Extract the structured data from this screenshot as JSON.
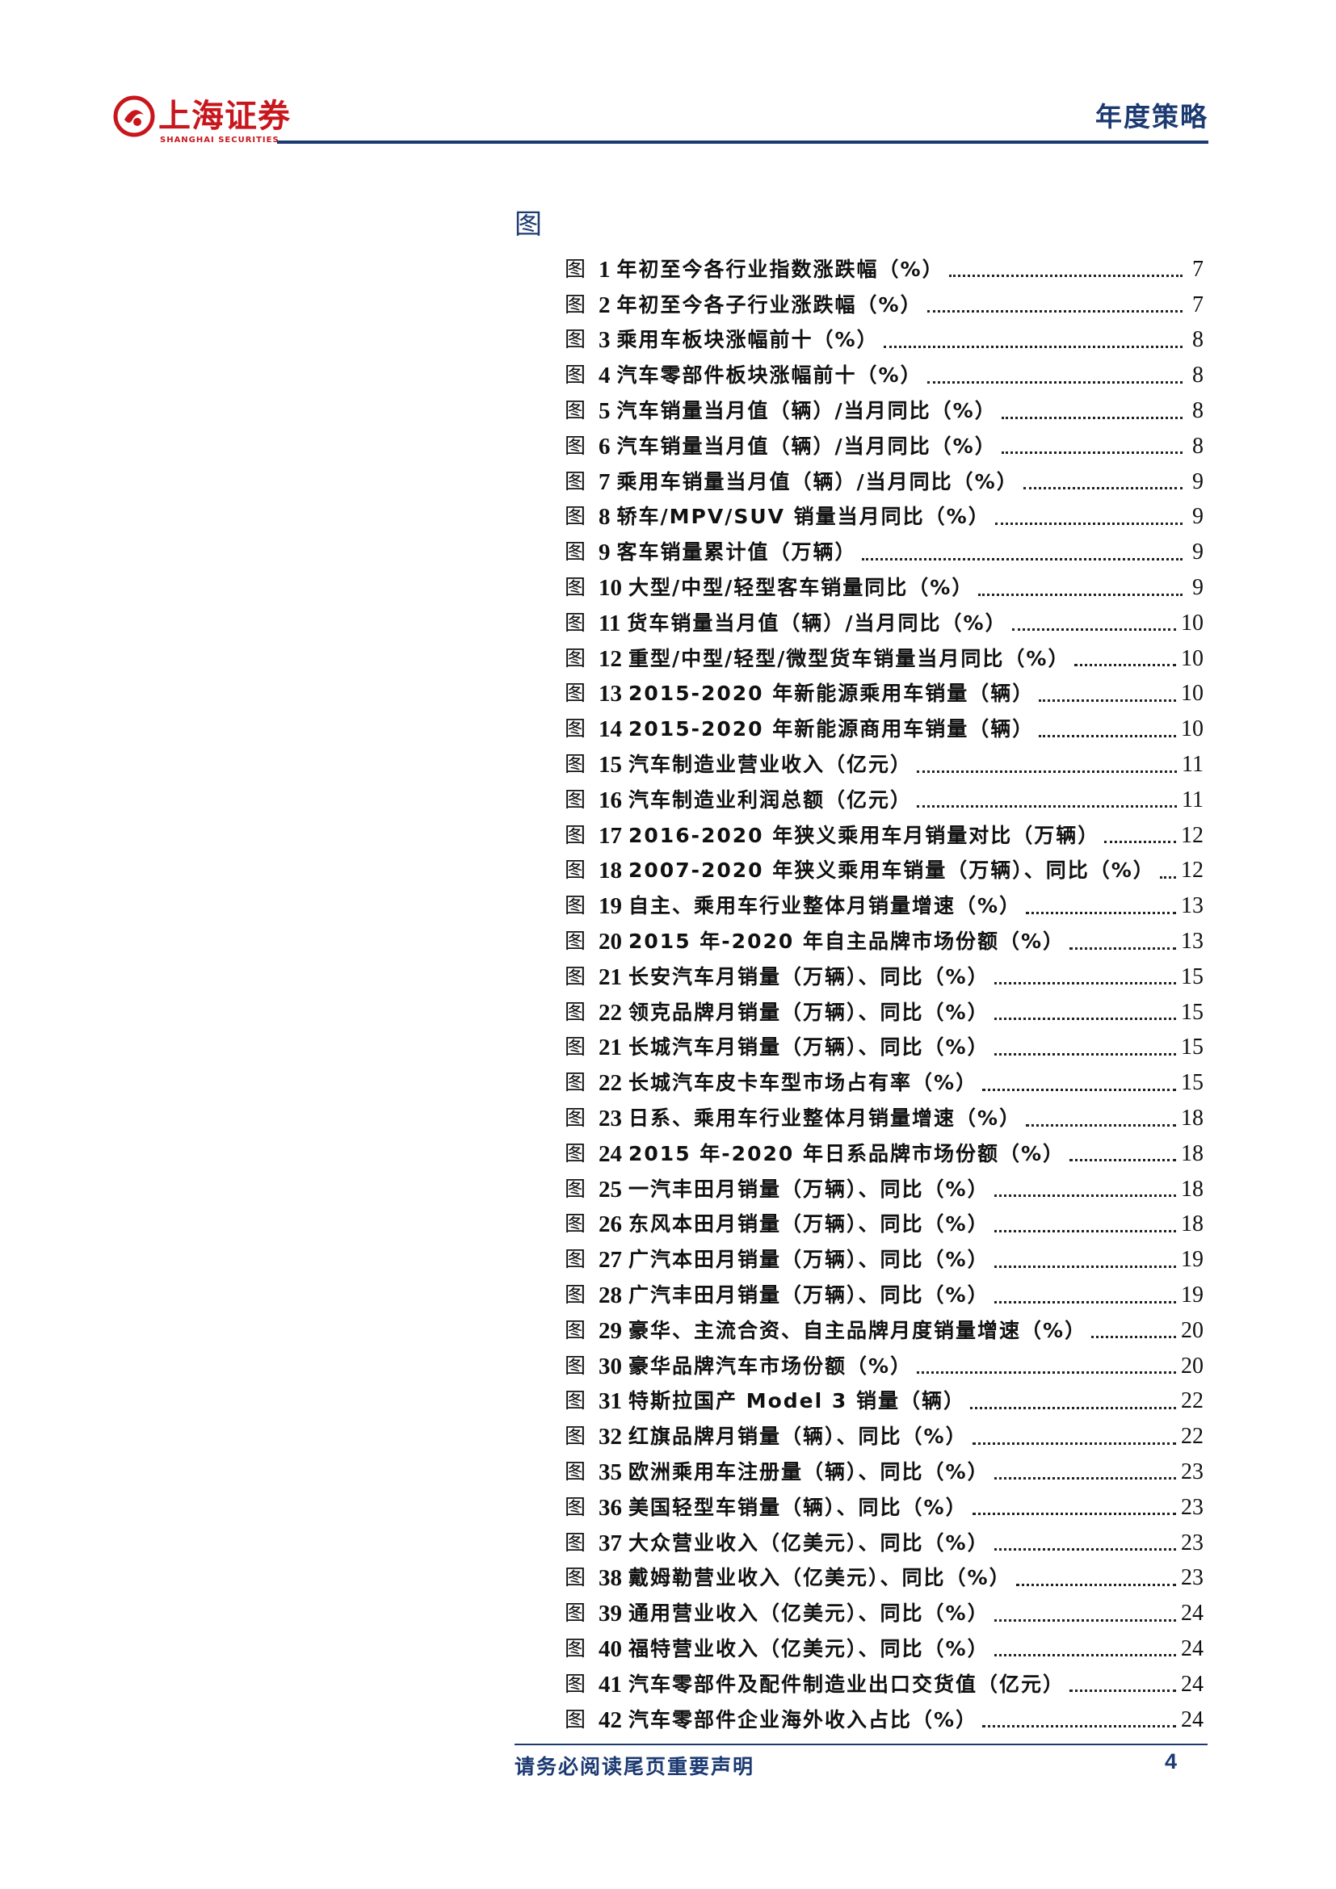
{
  "header": {
    "logo_cn": "上海证券",
    "logo_en": "SHANGHAI SECURITIES",
    "title": "年度策略"
  },
  "section_heading": "图",
  "toc_label": "图",
  "toc": [
    {
      "num": "1",
      "title": "年初至今各行业指数涨跌幅（%）",
      "page": "7"
    },
    {
      "num": "2",
      "title": "年初至今各子行业涨跌幅（%）",
      "page": "7"
    },
    {
      "num": "3",
      "title": "乘用车板块涨幅前十（%）",
      "page": "8"
    },
    {
      "num": "4",
      "title": "汽车零部件板块涨幅前十（%）",
      "page": "8"
    },
    {
      "num": "5",
      "title": " 汽车销量当月值（辆）/当月同比（%）",
      "page": "8"
    },
    {
      "num": "6",
      "title": "汽车销量当月值（辆）/当月同比（%）",
      "page": "8"
    },
    {
      "num": "7",
      "title": "乘用车销量当月值（辆）/当月同比（%）",
      "page": "9"
    },
    {
      "num": "8",
      "title": "轿车/MPV/SUV 销量当月同比（%）",
      "page": "9"
    },
    {
      "num": "9",
      "title": " 客车销量累计值（万辆）",
      "page": "9"
    },
    {
      "num": "10",
      "title": "大型/中型/轻型客车销量同比（%）",
      "page": "9"
    },
    {
      "num": "11",
      "title": " 货车销量当月值（辆）/当月同比（%）",
      "page": "10"
    },
    {
      "num": "12",
      "title": "重型/中型/轻型/微型货车销量当月同比（%）",
      "page": "10"
    },
    {
      "num": "13",
      "title": "2015-2020 年新能源乘用车销量（辆）",
      "page": "10"
    },
    {
      "num": "14",
      "title": "2015-2020 年新能源商用车销量（辆）",
      "page": "10"
    },
    {
      "num": "15",
      "title": " 汽车制造业营业收入（亿元）",
      "page": "11"
    },
    {
      "num": "16",
      "title": "汽车制造业利润总额（亿元）",
      "page": "11"
    },
    {
      "num": "17",
      "title": "2016-2020 年狭义乘用车月销量对比（万辆）",
      "page": "12"
    },
    {
      "num": "18",
      "title": "2007-2020 年狭义乘用车销量（万辆）、同比（%）",
      "page": "12"
    },
    {
      "num": "19",
      "title": " 自主、乘用车行业整体月销量增速（%）",
      "page": "13"
    },
    {
      "num": "20",
      "title": "2015 年-2020 年自主品牌市场份额（%）",
      "page": "13"
    },
    {
      "num": "21",
      "title": "长安汽车月销量（万辆）、同比（%）",
      "page": "15"
    },
    {
      "num": "22",
      "title": "领克品牌月销量（万辆）、同比（%）",
      "page": "15"
    },
    {
      "num": "21",
      "title": "长城汽车月销量（万辆）、同比（%）",
      "page": "15"
    },
    {
      "num": "22",
      "title": "长城汽车皮卡车型市场占有率（%）",
      "page": "15"
    },
    {
      "num": "23",
      "title": " 日系、乘用车行业整体月销量增速（%）",
      "page": "18"
    },
    {
      "num": "24",
      "title": "2015 年-2020 年日系品牌市场份额（%）",
      "page": "18"
    },
    {
      "num": "25",
      "title": "一汽丰田月销量（万辆）、同比（%）",
      "page": "18"
    },
    {
      "num": "26",
      "title": "东风本田月销量（万辆）、同比（%）",
      "page": "18"
    },
    {
      "num": "27",
      "title": "广汽本田月销量（万辆）、同比（%）",
      "page": "19"
    },
    {
      "num": "28",
      "title": "广汽丰田月销量（万辆）、同比（%）",
      "page": "19"
    },
    {
      "num": "29",
      "title": "豪华、主流合资、自主品牌月度销量增速（%）",
      "page": "20"
    },
    {
      "num": "30",
      "title": "豪华品牌汽车市场份额（%）",
      "page": "20"
    },
    {
      "num": "31",
      "title": "特斯拉国产 Model 3 销量（辆）",
      "page": "22"
    },
    {
      "num": "32",
      "title": "红旗品牌月销量（辆）、同比（%）",
      "page": "22"
    },
    {
      "num": "35",
      "title": "欧洲乘用车注册量（辆）、同比（%）",
      "page": "23"
    },
    {
      "num": "36",
      "title": "美国轻型车销量（辆）、同比（%）",
      "page": "23"
    },
    {
      "num": "37",
      "title": "大众营业收入（亿美元）、同比（%）",
      "page": "23"
    },
    {
      "num": "38",
      "title": "戴姆勒营业收入（亿美元）、同比（%）",
      "page": "23"
    },
    {
      "num": "39",
      "title": "通用营业收入（亿美元）、同比（%）",
      "page": "24"
    },
    {
      "num": "40",
      "title": "福特营业收入（亿美元）、同比（%）",
      "page": "24"
    },
    {
      "num": "41",
      "title": "汽车零部件及配件制造业出口交货值（亿元）",
      "page": "24"
    },
    {
      "num": "42",
      "title": "汽车零部件企业海外收入占比（%）",
      "page": "24"
    }
  ],
  "footer": {
    "note": "请务必阅读尾页重要声明",
    "page": "4"
  },
  "colors": {
    "brand_red": "#c8161d",
    "navy": "#1c3a72"
  }
}
